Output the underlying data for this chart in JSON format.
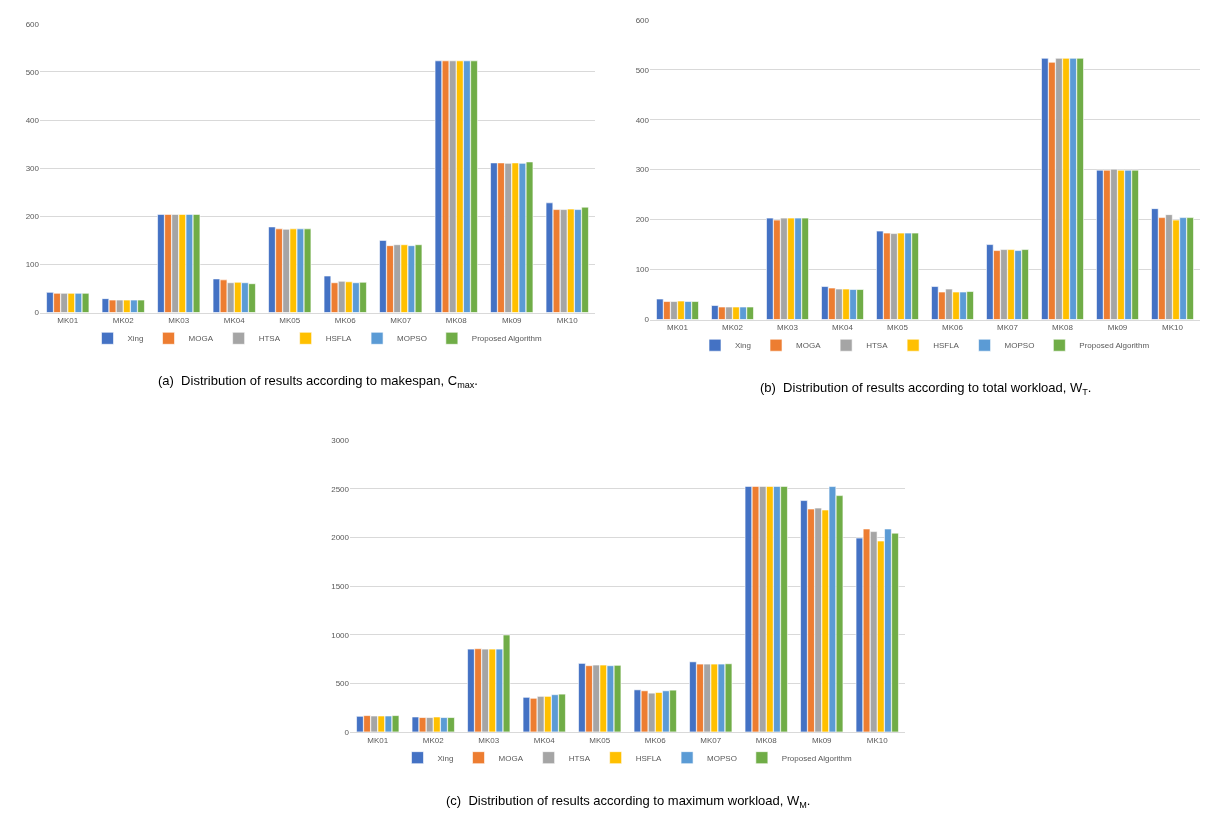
{
  "chart_data": [
    {
      "type": "bar",
      "categories": [
        "MK01",
        "MK02",
        "MK03",
        "MK04",
        "MK05",
        "MK06",
        "MK07",
        "MK08",
        "Mk09",
        "MK10"
      ],
      "ylim": [
        0,
        600
      ],
      "yticks": [
        0,
        100,
        200,
        300,
        400,
        500,
        600
      ],
      "grid": "y",
      "legend": "bottom",
      "annotations": [
        "(a)  Distribution of results according to makespan, C$_{max}$."
      ],
      "series": [
        {
          "name": "Xing",
          "color": "#4472c4",
          "values": [
            42,
            29,
            204,
            70,
            178,
            76,
            150,
            523,
            311,
            228
          ]
        },
        {
          "name": "MOGA",
          "color": "#ed7d31",
          "values": [
            40,
            26,
            204,
            68,
            174,
            62,
            139,
            523,
            311,
            214
          ]
        },
        {
          "name": "HTSA",
          "color": "#a5a5a5",
          "values": [
            40,
            26,
            204,
            62,
            173,
            65,
            141,
            523,
            310,
            214
          ]
        },
        {
          "name": "HSFLA",
          "color": "#ffc000",
          "values": [
            40,
            26,
            204,
            63,
            174,
            64,
            141,
            523,
            311,
            215
          ]
        },
        {
          "name": "MOPSO",
          "color": "#5b9bd5",
          "values": [
            40,
            26,
            204,
            62,
            174,
            62,
            139,
            523,
            310,
            214
          ]
        },
        {
          "name": "Proposed Algorithm",
          "color": "#70ad47",
          "values": [
            40,
            26,
            204,
            60,
            174,
            63,
            141,
            523,
            313,
            219
          ]
        }
      ]
    },
    {
      "type": "bar",
      "categories": [
        "MK01",
        "MK02",
        "MK03",
        "MK04",
        "MK05",
        "MK06",
        "MK07",
        "MK08",
        "Mk09",
        "MK10"
      ],
      "ylim": [
        0,
        600
      ],
      "yticks": [
        0,
        100,
        200,
        300,
        400,
        500,
        600
      ],
      "grid": "y",
      "legend": "bottom",
      "annotations": [
        "(b)  Distribution of results according to total workload, W$_{T}$."
      ],
      "series": [
        {
          "name": "Xing",
          "color": "#4472c4",
          "values": [
            41,
            28,
            203,
            66,
            177,
            66,
            150,
            523,
            299,
            222
          ]
        },
        {
          "name": "MOGA",
          "color": "#ed7d31",
          "values": [
            36,
            25,
            199,
            63,
            173,
            55,
            138,
            515,
            299,
            204
          ]
        },
        {
          "name": "HTSA",
          "color": "#a5a5a5",
          "values": [
            36,
            25,
            203,
            61,
            172,
            61,
            140,
            523,
            301,
            210
          ]
        },
        {
          "name": "HSFLA",
          "color": "#ffc000",
          "values": [
            37,
            25,
            203,
            61,
            173,
            55,
            140,
            523,
            299,
            199
          ]
        },
        {
          "name": "MOPSO",
          "color": "#5b9bd5",
          "values": [
            36,
            25,
            203,
            60,
            173,
            55,
            138,
            523,
            299,
            204
          ]
        },
        {
          "name": "Proposed Algorithm",
          "color": "#70ad47",
          "values": [
            36,
            25,
            203,
            60,
            173,
            56,
            140,
            523,
            299,
            204
          ]
        }
      ]
    },
    {
      "type": "bar",
      "categories": [
        "MK01",
        "MK02",
        "MK03",
        "MK04",
        "MK05",
        "MK06",
        "MK07",
        "MK08",
        "Mk09",
        "MK10"
      ],
      "ylim": [
        0,
        3000
      ],
      "yticks": [
        0,
        500,
        1000,
        1500,
        2000,
        2500,
        3000
      ],
      "grid": "y",
      "legend": "bottom",
      "annotations": [
        "(c)  Distribution of results according to maximum workload, W$_{M}$."
      ],
      "series": [
        {
          "name": "Xing",
          "color": "#4472c4",
          "values": [
            161,
            154,
            852,
            356,
            705,
            433,
            721,
            2525,
            2379,
            1993
          ]
        },
        {
          "name": "MOGA",
          "color": "#ed7d31",
          "values": [
            168,
            148,
            856,
            346,
            681,
            423,
            698,
            2525,
            2292,
            2087
          ]
        },
        {
          "name": "HTSA",
          "color": "#a5a5a5",
          "values": [
            164,
            148,
            852,
            366,
            688,
            399,
            698,
            2525,
            2302,
            2060
          ]
        },
        {
          "name": "HSFLA",
          "color": "#ffc000",
          "values": [
            164,
            154,
            852,
            366,
            688,
            406,
            698,
            2525,
            2282,
            1963
          ]
        },
        {
          "name": "MOPSO",
          "color": "#5b9bd5",
          "values": [
            164,
            148,
            852,
            383,
            681,
            423,
            698,
            2525,
            2523,
            2087
          ]
        },
        {
          "name": "Proposed Algorithm",
          "color": "#70ad47",
          "values": [
            168,
            148,
            997,
            389,
            685,
            430,
            701,
            2525,
            2430,
            2044
          ]
        }
      ]
    }
  ]
}
